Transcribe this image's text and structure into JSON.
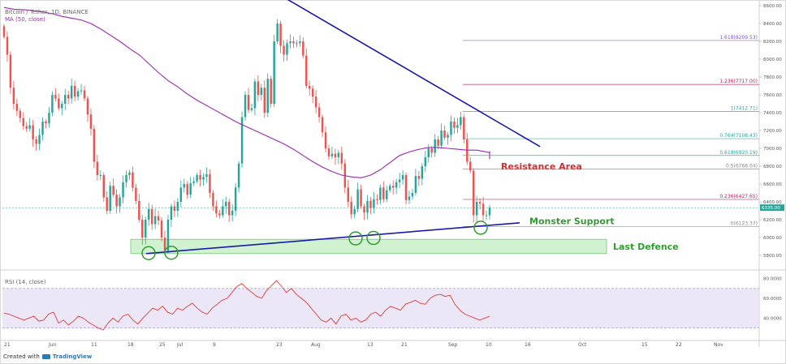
{
  "header": {
    "symbol_line": "Bitcoin / Tether, 1D, BINANCE",
    "ma_label": "MA (50, close)"
  },
  "rsi_label": "RSI (14, close)",
  "footer": {
    "created_with": "Created with",
    "brand": "TradingView"
  },
  "colors": {
    "up": "#26a69a",
    "down": "#ef5350",
    "ma": "#9c27b0",
    "rsi": "#e53935",
    "trend": "#1a1aa8",
    "annot_red": "#d32f2f",
    "annot_green": "#2e9d2e",
    "fib": "#7e57c2",
    "fib_pink": "#c2185b",
    "fib_teal": "#26a69a",
    "box_fill": "#c8f0c8",
    "box_edge": "#5dbb5d"
  },
  "chart_data": {
    "type": "candlestick",
    "price_axis": {
      "ticks": [
        "8800.00",
        "8600.00",
        "8400.00",
        "8200.00",
        "8000.00",
        "7800.00",
        "7600.00",
        "7400.00",
        "7200.00",
        "7000.00",
        "6800.00",
        "6600.00",
        "6400.00",
        "6200.00",
        "6000.00",
        "5800.00"
      ],
      "values": [
        8800,
        8600,
        8400,
        8200,
        8000,
        7800,
        7600,
        7400,
        7200,
        7000,
        6800,
        6600,
        6400,
        6200,
        6000,
        5800
      ],
      "current_price": "6335.00"
    },
    "rsi_axis": {
      "ticks": [
        "80.0000",
        "60.0000",
        "40.0000"
      ],
      "values": [
        80,
        60,
        40
      ],
      "range": [
        20,
        90
      ]
    },
    "time_axis": {
      "labels": [
        "21",
        "Jun",
        "11",
        "18",
        "25",
        "Jul",
        "9",
        "23",
        "Aug",
        "13",
        "21",
        "Sep",
        "10",
        "16",
        "Oct",
        "15",
        "22",
        "Nov"
      ]
    },
    "fib_levels": [
      {
        "label": "1.618(8209.53)",
        "value": 8209.53
      },
      {
        "label": "1.236(7717.00)",
        "value": 7717.0
      },
      {
        "label": "1(7412.71)",
        "value": 7412.71
      },
      {
        "label": "0.764(7108.43)",
        "value": 7108.43
      },
      {
        "label": "0.618(6920.19)",
        "value": 6920.19
      },
      {
        "label": "0.5(6768.04)",
        "value": 6768.04
      },
      {
        "label": "0.236(6427.65)",
        "value": 6427.65
      },
      {
        "label": "0(6123.37)",
        "value": 6123.37
      }
    ],
    "annotations": {
      "resistance": "Resistance Area",
      "support": "Monster Support",
      "defence": "Last Defence"
    },
    "closes": [
      8250,
      8050,
      7680,
      7500,
      7420,
      7340,
      7250,
      7220,
      7260,
      7100,
      7050,
      7150,
      7300,
      7280,
      7400,
      7600,
      7560,
      7450,
      7500,
      7600,
      7560,
      7700,
      7580,
      7640,
      7650,
      7560,
      7380,
      7220,
      6850,
      6700,
      6700,
      6450,
      6300,
      6580,
      6480,
      6350,
      6450,
      6620,
      6700,
      6730,
      6560,
      6410,
      6200,
      6000,
      6200,
      6320,
      6150,
      6240,
      6190,
      6000,
      5850,
      6200,
      6350,
      6300,
      6400,
      6560,
      6600,
      6480,
      6610,
      6630,
      6700,
      6650,
      6680,
      6710,
      6500,
      6350,
      6270,
      6250,
      6350,
      6400,
      6250,
      6300,
      6560,
      6830,
      7350,
      7600,
      7430,
      7450,
      7750,
      7600,
      7680,
      7400,
      7780,
      7500,
      8200,
      8400,
      8150,
      8050,
      8180,
      8200,
      8180,
      8180,
      8200,
      8040,
      7700,
      7670,
      7580,
      7460,
      7350,
      7180,
      7000,
      6910,
      6940,
      6900,
      6950,
      6830,
      6560,
      6400,
      6260,
      6320,
      6540,
      6350,
      6280,
      6410,
      6330,
      6430,
      6420,
      6560,
      6430,
      6530,
      6580,
      6560,
      6620,
      6650,
      6700,
      6420,
      6460,
      6500,
      6690,
      6660,
      6800,
      6900,
      7000,
      6950,
      7100,
      7030,
      7200,
      7120,
      7150,
      7300,
      7230,
      7260,
      7350,
      7100,
      6850,
      6750,
      6250,
      6400,
      6380,
      6250,
      6250,
      6335
    ],
    "ma50": [
      8580,
      8560,
      8555,
      8545,
      8530,
      8510,
      8480,
      8460,
      8440,
      8400,
      8340,
      8270,
      8200,
      8120,
      8050,
      7950,
      7850,
      7760,
      7690,
      7610,
      7540,
      7480,
      7420,
      7360,
      7300,
      7250,
      7200,
      7150,
      7100,
      7050,
      6990,
      6920,
      6850,
      6790,
      6740,
      6700,
      6680,
      6670,
      6700,
      6760,
      6840,
      6920,
      6960,
      6990,
      7010,
      7010,
      7000,
      6990,
      6980,
      6980,
      6960,
      6950,
      6970,
      6960,
      6940,
      6880
    ],
    "ma50_start": 0,
    "ma50_step": 3,
    "rsi": [
      45,
      44,
      42,
      40,
      38,
      40,
      42,
      37,
      38,
      44,
      46,
      35,
      38,
      33,
      37,
      42,
      40,
      36,
      33,
      30,
      28,
      35,
      40,
      36,
      42,
      44,
      38,
      34,
      40,
      45,
      50,
      48,
      52,
      46,
      44,
      50,
      48,
      52,
      55,
      50,
      46,
      44,
      50,
      54,
      58,
      60,
      66,
      72,
      75,
      70,
      66,
      62,
      60,
      68,
      73,
      78,
      72,
      66,
      70,
      64,
      60,
      56,
      50,
      44,
      38,
      36,
      40,
      34,
      42,
      44,
      38,
      40,
      36,
      38,
      44,
      46,
      42,
      48,
      52,
      50,
      48,
      54,
      56,
      58,
      55,
      54,
      60,
      63,
      64,
      62,
      63,
      54,
      48,
      44,
      42,
      40,
      38,
      40,
      42
    ]
  }
}
